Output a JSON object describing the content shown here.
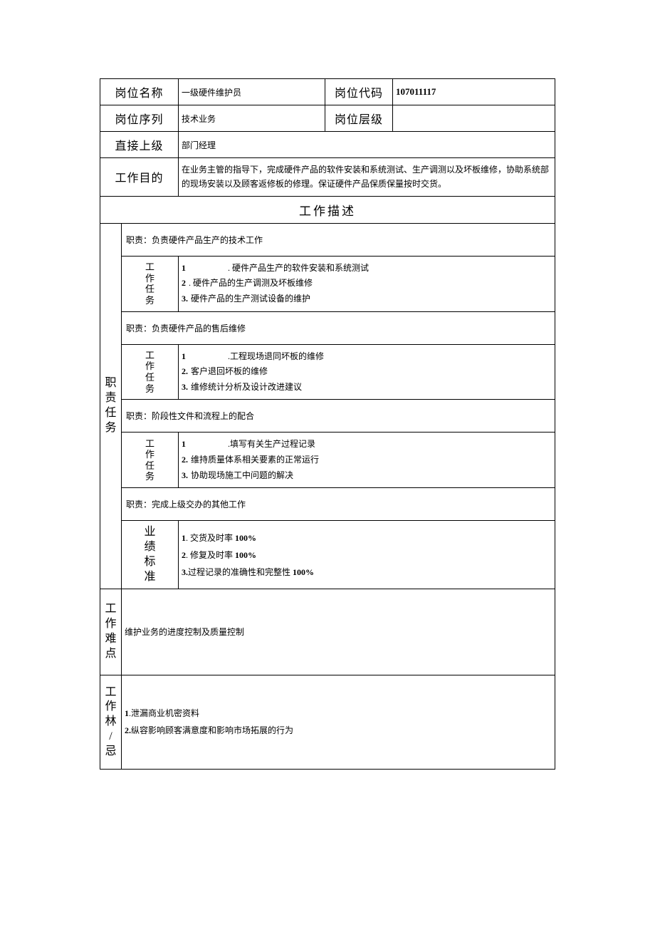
{
  "header": {
    "position_name_label": "岗位名称",
    "position_name_value": "一级硬件维护员",
    "position_code_label": "岗位代码",
    "position_code_value": "107011117",
    "position_series_label": "岗位序列",
    "position_series_value": "技术业务",
    "position_level_label": "岗位层级",
    "position_level_value": "",
    "supervisor_label": "直接上级",
    "supervisor_value": "部门经理",
    "purpose_label": "工作目的",
    "purpose_value": "在业务主管的指导下，完成硬件产品的软件安装和系统测试、生产调测以及坏板维修，协助系统部的现场安装以及顾客返修板的修理。保证硬件产品保质保量按时交货。"
  },
  "section_title": "工作描述",
  "responsibility_label": "职责任务",
  "task_label": "工作任务",
  "duties": [
    {
      "title": "职责：负责硬件产品生产的技术工作",
      "tasks": {
        "n1": "1",
        "gap1": "",
        "t1": ". 硬件产品生产的软件安装和系统测试",
        "n2": "2",
        "t2": ". 硬件产品的生产调测及坏板维修",
        "n3": "3.",
        "t3": "硬件产品的生产测试设备的维护"
      }
    },
    {
      "title": "职责：负责硬件产品的售后维修",
      "tasks": {
        "n1": "1",
        "gap1": "",
        "t1": ".工程现场退同坏板的维修",
        "n2": "2.",
        "t2": "客户退回坏板的维修",
        "n3": "3.",
        "t3": "维修统计分析及设计改进建议"
      }
    },
    {
      "title": "职责：阶段性文件和流程上的配合",
      "tasks": {
        "n1": "1",
        "gap1": "",
        "t1": ".填写有关生产过程记录",
        "n2": "2.",
        "t2": "维持质量体系相关要素的正常运行",
        "n3": "3.",
        "t3": "协助现场施工中问题的解决"
      }
    },
    {
      "title": "职责：完成上级交办的其他工作"
    }
  ],
  "standards": {
    "label": "业绩标准",
    "items": {
      "n1": "1",
      "gap1": "",
      "t1a": ". 交货及时率 ",
      "t1b": "100%",
      "n2": "2",
      "t2a": ". 修复及时率 ",
      "t2b": "100%",
      "n3": "3.",
      "t3a": "过程记录的准确性和完整性 ",
      "t3b": "100%"
    }
  },
  "difficulty": {
    "label": "工作难点",
    "text": "维护业务的进度控制及质量控制"
  },
  "taboo": {
    "label": "工作林/忌",
    "items": {
      "n1": "1",
      "gap1": "",
      "t1": ".泄漏商业机密资料",
      "n2": "2.",
      "t2": "纵容影响顾客满意度和影响市场拓展的行为"
    }
  },
  "colors": {
    "border": "#000000",
    "background": "#ffffff",
    "text": "#000000"
  },
  "typography": {
    "base_font_size": 13,
    "label_font_size": 16,
    "section_header_size": 17,
    "font_family": "SimSun"
  }
}
